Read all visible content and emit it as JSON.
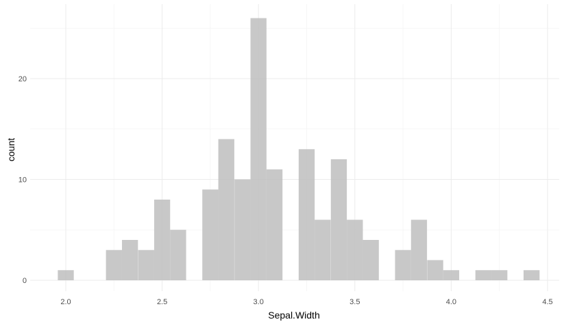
{
  "chart_data": {
    "type": "bar",
    "xlabel": "Sepal.Width",
    "ylabel": "count",
    "xlim": [
      1.9,
      4.5
    ],
    "ylim": [
      0,
      26
    ],
    "x_ticks": [
      {
        "value": 2.0,
        "label": "2.0"
      },
      {
        "value": 2.5,
        "label": "2.5"
      },
      {
        "value": 3.0,
        "label": "3.0"
      },
      {
        "value": 3.5,
        "label": "3.5"
      },
      {
        "value": 4.0,
        "label": "4.0"
      },
      {
        "value": 4.5,
        "label": "4.5"
      }
    ],
    "y_ticks": [
      {
        "value": 0,
        "label": "0"
      },
      {
        "value": 10,
        "label": "10"
      },
      {
        "value": 20,
        "label": "20"
      }
    ],
    "bin_width": 0.083,
    "bins": [
      {
        "x": 2.0,
        "count": 1
      },
      {
        "x": 2.083,
        "count": 0
      },
      {
        "x": 2.167,
        "count": 0
      },
      {
        "x": 2.25,
        "count": 3
      },
      {
        "x": 2.333,
        "count": 4
      },
      {
        "x": 2.417,
        "count": 3
      },
      {
        "x": 2.5,
        "count": 8
      },
      {
        "x": 2.583,
        "count": 5
      },
      {
        "x": 2.667,
        "count": 0
      },
      {
        "x": 2.75,
        "count": 9
      },
      {
        "x": 2.833,
        "count": 14
      },
      {
        "x": 2.917,
        "count": 10
      },
      {
        "x": 3.0,
        "count": 26
      },
      {
        "x": 3.083,
        "count": 11
      },
      {
        "x": 3.167,
        "count": 0
      },
      {
        "x": 3.25,
        "count": 13
      },
      {
        "x": 3.333,
        "count": 6
      },
      {
        "x": 3.417,
        "count": 12
      },
      {
        "x": 3.5,
        "count": 6
      },
      {
        "x": 3.583,
        "count": 4
      },
      {
        "x": 3.667,
        "count": 0
      },
      {
        "x": 3.75,
        "count": 3
      },
      {
        "x": 3.833,
        "count": 6
      },
      {
        "x": 3.917,
        "count": 2
      },
      {
        "x": 4.0,
        "count": 1
      },
      {
        "x": 4.083,
        "count": 0
      },
      {
        "x": 4.167,
        "count": 1
      },
      {
        "x": 4.25,
        "count": 1
      },
      {
        "x": 4.333,
        "count": 0
      },
      {
        "x": 4.417,
        "count": 1
      }
    ],
    "grid": true,
    "legend": "none",
    "colors": {
      "bar_fill": "#bebebe",
      "grid": "#ebebeb",
      "tick_text": "#4d4d4d"
    }
  }
}
